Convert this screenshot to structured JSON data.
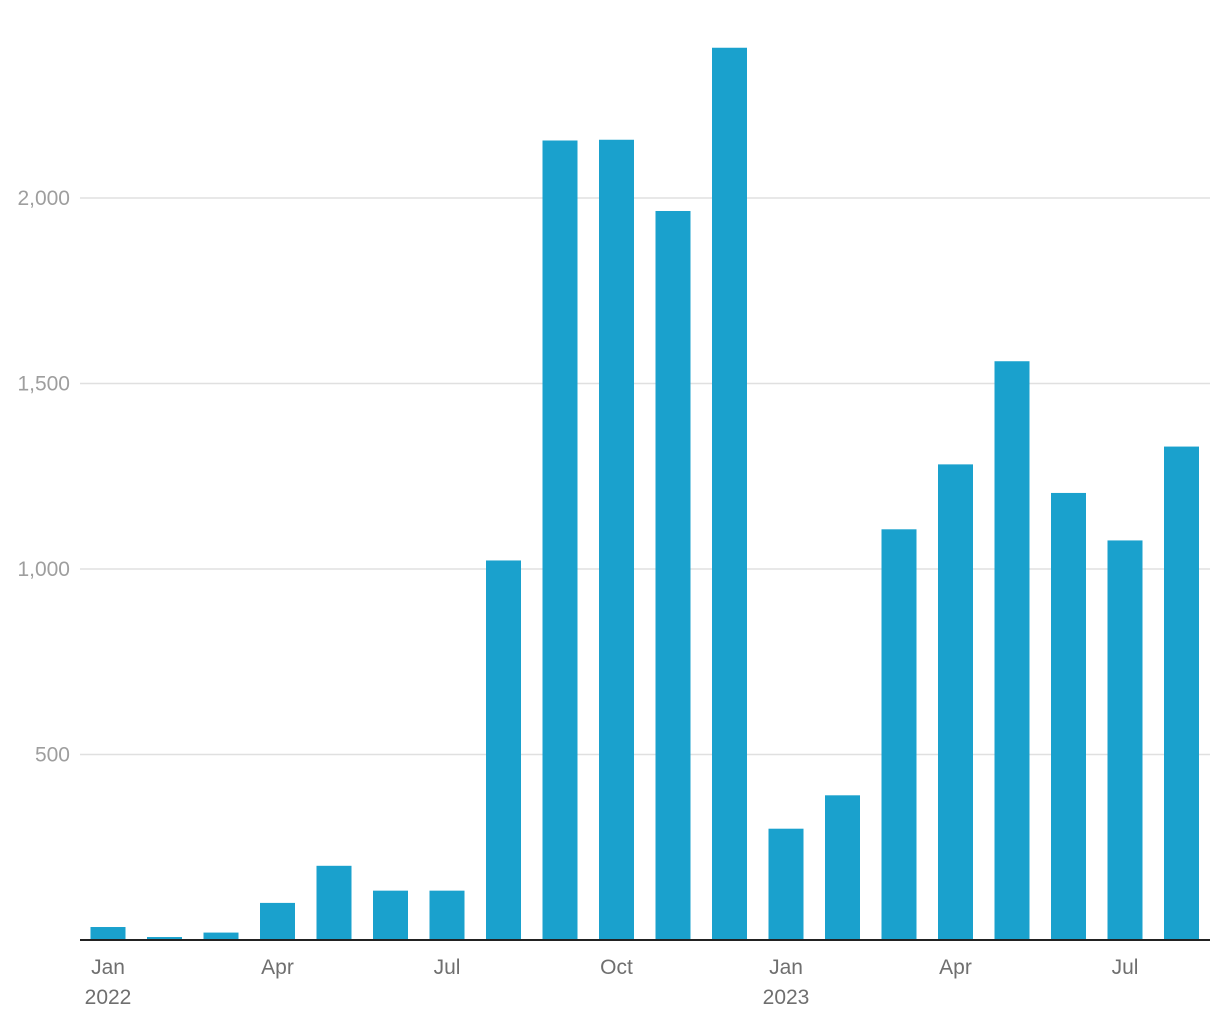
{
  "chart_data": {
    "type": "bar",
    "title": "",
    "xlabel": "",
    "ylabel": "",
    "categories": [
      "2022-01",
      "2022-02",
      "2022-03",
      "2022-04",
      "2022-05",
      "2022-06",
      "2022-07",
      "2022-08",
      "2022-09",
      "2022-10",
      "2022-11",
      "2022-12",
      "2023-01",
      "2023-02",
      "2023-03",
      "2023-04",
      "2023-05",
      "2023-06",
      "2023-07",
      "2023-08"
    ],
    "values": [
      35,
      8,
      20,
      100,
      200,
      133,
      133,
      1023,
      2155,
      2157,
      1965,
      2405,
      300,
      390,
      1107,
      1282,
      1560,
      1205,
      1077,
      1330
    ],
    "ylim": [
      0,
      2400
    ],
    "y_ticks": [
      {
        "value": 500,
        "label": "500"
      },
      {
        "value": 1000,
        "label": "1,000"
      },
      {
        "value": 1500,
        "label": "1,500"
      },
      {
        "value": 2000,
        "label": "2,000"
      }
    ],
    "x_ticks": [
      {
        "index": 0,
        "label": "Jan",
        "sublabel": "2022"
      },
      {
        "index": 3,
        "label": "Apr",
        "sublabel": ""
      },
      {
        "index": 6,
        "label": "Jul",
        "sublabel": ""
      },
      {
        "index": 9,
        "label": "Oct",
        "sublabel": ""
      },
      {
        "index": 12,
        "label": "Jan",
        "sublabel": "2023"
      },
      {
        "index": 15,
        "label": "Apr",
        "sublabel": ""
      },
      {
        "index": 18,
        "label": "Jul",
        "sublabel": ""
      }
    ],
    "grid": true,
    "legend": "none",
    "bar_color": "#1aa1cd"
  }
}
